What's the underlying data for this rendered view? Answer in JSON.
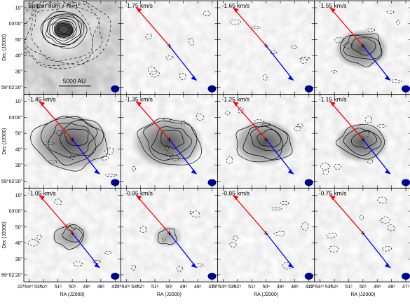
{
  "figure": {
    "panels": [
      {
        "label": "Spitzer 8um + N₂H⁺",
        "type": "spitzer",
        "scalebar": "5000 AU"
      },
      {
        "label": "-1.75 km/s",
        "type": "channel",
        "strength": 0.0
      },
      {
        "label": "-1.65 km/s",
        "type": "channel",
        "strength": 0.05
      },
      {
        "label": "-1.55 km/s",
        "type": "channel",
        "strength": 0.55
      },
      {
        "label": "-1.45 km/s",
        "type": "channel",
        "strength": 1.0
      },
      {
        "label": "-1.35 km/s",
        "type": "channel",
        "strength": 0.85
      },
      {
        "label": "-1.25 km/s",
        "type": "channel",
        "strength": 0.7
      },
      {
        "label": "-1.15 km/s",
        "type": "channel",
        "strength": 0.55
      },
      {
        "label": "-1.05 km/s",
        "type": "channel",
        "strength": 0.25
      },
      {
        "label": "-0.95 km/s",
        "type": "channel",
        "strength": 0.1
      },
      {
        "label": "-0.85 km/s",
        "type": "channel",
        "strength": 0.03
      },
      {
        "label": "-0.75 km/s",
        "type": "channel",
        "strength": 0.0
      }
    ],
    "y_axis": {
      "label": "Dec (J2000)",
      "ticks": [
        "10\"",
        "03'00\"",
        "50\"",
        "40\"",
        "30\"",
        "59°02'20\""
      ]
    },
    "x_axis": {
      "label": "RA (J2000)",
      "ticks": [
        "22ʰ54ᵐ 53ˢ",
        "52ˢ",
        "51ˢ",
        "50ˢ",
        "49ˢ",
        "48ˢ",
        "47ˢ"
      ]
    },
    "colors": {
      "red_lobe": "#ff0000",
      "blue_lobe": "#0000ff",
      "beam": "#00008b",
      "contour": "#000000"
    }
  }
}
